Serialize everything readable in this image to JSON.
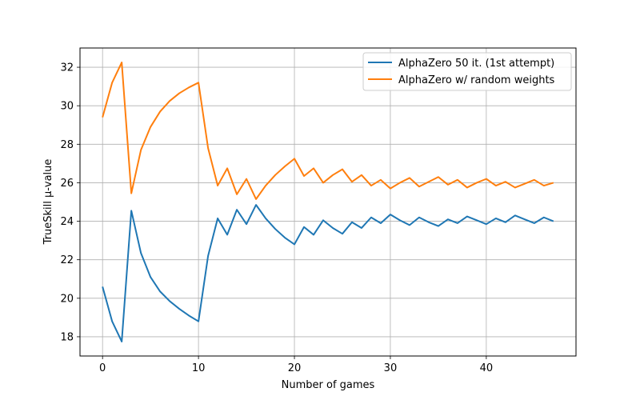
{
  "chart_data": {
    "type": "line",
    "title": "",
    "xlabel": "Number of games",
    "ylabel": "TrueSkill μ-value",
    "xlim": [
      -2.35,
      49.35
    ],
    "ylim": [
      17.0,
      33.0
    ],
    "xticks": [
      0,
      10,
      20,
      30,
      40
    ],
    "yticks": [
      18,
      20,
      22,
      24,
      26,
      28,
      30,
      32
    ],
    "grid": true,
    "legend_position": "top-right",
    "series": [
      {
        "name": "AlphaZero 50 it. (1st attempt)",
        "color": "#1f77b4",
        "x": [
          0,
          1,
          2,
          3,
          4,
          5,
          6,
          7,
          8,
          9,
          10,
          11,
          12,
          13,
          14,
          15,
          16,
          17,
          18,
          19,
          20,
          21,
          22,
          23,
          24,
          25,
          26,
          27,
          28,
          29,
          30,
          31,
          32,
          33,
          34,
          35,
          36,
          37,
          38,
          39,
          40,
          41,
          42,
          43,
          44,
          45,
          46,
          47
        ],
        "values": [
          20.6,
          18.8,
          17.75,
          24.55,
          22.35,
          21.1,
          20.35,
          19.85,
          19.45,
          19.1,
          18.8,
          22.2,
          24.15,
          23.3,
          24.6,
          23.85,
          24.85,
          24.15,
          23.6,
          23.15,
          22.8,
          23.7,
          23.3,
          24.05,
          23.65,
          23.35,
          23.95,
          23.65,
          24.2,
          23.9,
          24.35,
          24.05,
          23.8,
          24.2,
          23.95,
          23.75,
          24.1,
          23.9,
          24.25,
          24.05,
          23.85,
          24.15,
          23.95,
          24.3,
          24.1,
          23.9,
          24.2,
          24.0
        ]
      },
      {
        "name": "AlphaZero w/ random weights",
        "color": "#ff7f0e",
        "x": [
          0,
          1,
          2,
          3,
          4,
          5,
          6,
          7,
          8,
          9,
          10,
          11,
          12,
          13,
          14,
          15,
          16,
          17,
          18,
          19,
          20,
          21,
          22,
          23,
          24,
          25,
          26,
          27,
          28,
          29,
          30,
          31,
          32,
          33,
          34,
          35,
          36,
          37,
          38,
          39,
          40,
          41,
          42,
          43,
          44,
          45,
          46,
          47
        ],
        "values": [
          29.4,
          31.2,
          32.25,
          25.45,
          27.7,
          28.9,
          29.7,
          30.25,
          30.65,
          30.95,
          31.2,
          27.8,
          25.85,
          26.75,
          25.4,
          26.2,
          25.15,
          25.85,
          26.4,
          26.85,
          27.25,
          26.35,
          26.75,
          26.0,
          26.4,
          26.7,
          26.05,
          26.4,
          25.85,
          26.15,
          25.7,
          26.0,
          26.25,
          25.8,
          26.05,
          26.3,
          25.9,
          26.15,
          25.75,
          26.0,
          26.2,
          25.85,
          26.05,
          25.75,
          25.95,
          26.15,
          25.85,
          26.0
        ]
      }
    ]
  }
}
